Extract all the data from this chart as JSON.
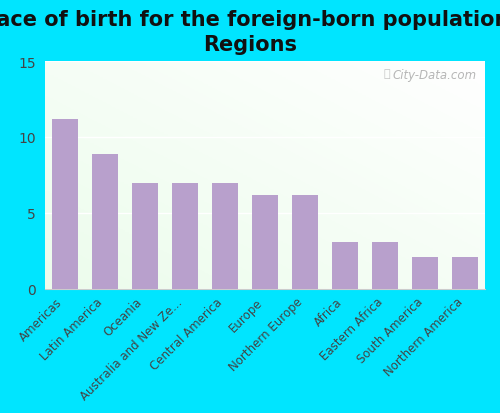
{
  "title": "Place of birth for the foreign-born population -\nRegions",
  "categories": [
    "Americas",
    "Latin America",
    "Oceania",
    "Australia and New Ze...",
    "Central America",
    "Europe",
    "Northern Europe",
    "Africa",
    "Eastern Africa",
    "South America",
    "Northern America"
  ],
  "values": [
    11.2,
    8.9,
    7.0,
    7.0,
    7.0,
    6.2,
    6.2,
    3.1,
    3.1,
    2.1,
    2.1
  ],
  "bar_color": "#b8a0cc",
  "outer_background": "#00e5ff",
  "ylim": [
    0,
    15
  ],
  "yticks": [
    0,
    5,
    10,
    15
  ],
  "title_fontsize": 15,
  "label_fontsize": 8.5,
  "tick_fontsize": 10,
  "watermark": "City-Data.com"
}
